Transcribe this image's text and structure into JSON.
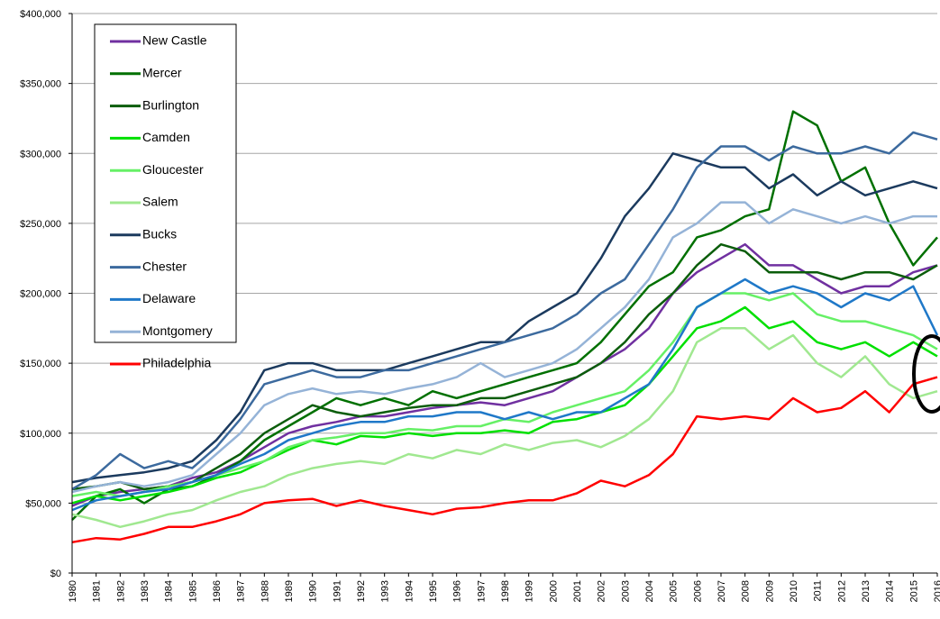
{
  "chart_data": {
    "type": "line",
    "x": [
      1980,
      1981,
      1982,
      1983,
      1984,
      1985,
      1986,
      1987,
      1988,
      1989,
      1990,
      1991,
      1992,
      1993,
      1994,
      1995,
      1996,
      1997,
      1998,
      1999,
      2000,
      2001,
      2002,
      2003,
      2004,
      2005,
      2006,
      2007,
      2008,
      2009,
      2010,
      2011,
      2012,
      2013,
      2014,
      2015,
      2016
    ],
    "xlim": [
      1980,
      2016
    ],
    "xticks": [
      1980,
      1981,
      1982,
      1983,
      1984,
      1985,
      1986,
      1987,
      1988,
      1989,
      1990,
      1991,
      1992,
      1993,
      1994,
      1995,
      1996,
      1997,
      1998,
      1999,
      2000,
      2001,
      2002,
      2003,
      2004,
      2005,
      2006,
      2007,
      2008,
      2009,
      2010,
      2011,
      2012,
      2013,
      2014,
      2015,
      2016
    ],
    "ylim": [
      0,
      400000
    ],
    "yticks": [
      {
        "value": 0,
        "label": "$0"
      },
      {
        "value": 50000,
        "label": "$50,000"
      },
      {
        "value": 100000,
        "label": "$100,000"
      },
      {
        "value": 150000,
        "label": "$150,000"
      },
      {
        "value": 200000,
        "label": "$200,000"
      },
      {
        "value": 250000,
        "label": "$250,000"
      },
      {
        "value": 300000,
        "label": "$300,000"
      },
      {
        "value": 350000,
        "label": "$350,000"
      },
      {
        "value": 400000,
        "label": "$400,000"
      }
    ],
    "grid": true,
    "legend": "top-left",
    "series": [
      {
        "name": "New Castle",
        "color": "#7030a0",
        "values": [
          48000,
          55000,
          58000,
          60000,
          62000,
          68000,
          72000,
          80000,
          90000,
          100000,
          105000,
          108000,
          112000,
          112000,
          115000,
          118000,
          120000,
          122000,
          120000,
          125000,
          130000,
          140000,
          150000,
          160000,
          175000,
          200000,
          215000,
          225000,
          235000,
          220000,
          220000,
          210000,
          200000,
          205000,
          205000,
          215000,
          220000
        ]
      },
      {
        "name": "Mercer",
        "color": "#007000",
        "values": [
          38000,
          55000,
          60000,
          50000,
          60000,
          62000,
          70000,
          80000,
          95000,
          105000,
          115000,
          125000,
          120000,
          125000,
          120000,
          130000,
          125000,
          130000,
          135000,
          140000,
          145000,
          150000,
          165000,
          185000,
          205000,
          215000,
          240000,
          245000,
          255000,
          260000,
          330000,
          320000,
          280000,
          290000,
          250000,
          220000,
          240000
        ]
      },
      {
        "name": "Burlington",
        "color": "#0b5d0b",
        "values": [
          60000,
          62000,
          65000,
          60000,
          62000,
          65000,
          75000,
          85000,
          100000,
          110000,
          120000,
          115000,
          112000,
          115000,
          118000,
          120000,
          120000,
          125000,
          125000,
          130000,
          135000,
          140000,
          150000,
          165000,
          185000,
          200000,
          220000,
          235000,
          230000,
          215000,
          215000,
          215000,
          210000,
          215000,
          215000,
          210000,
          220000
        ]
      },
      {
        "name": "Camden",
        "color": "#00e000",
        "values": [
          50000,
          55000,
          52000,
          55000,
          58000,
          62000,
          68000,
          72000,
          80000,
          88000,
          95000,
          92000,
          98000,
          97000,
          100000,
          98000,
          100000,
          100000,
          102000,
          100000,
          108000,
          110000,
          115000,
          120000,
          135000,
          155000,
          175000,
          180000,
          190000,
          175000,
          180000,
          165000,
          160000,
          165000,
          155000,
          165000,
          155000
        ]
      },
      {
        "name": "Gloucester",
        "color": "#66f066",
        "values": [
          55000,
          58000,
          55000,
          58000,
          62000,
          65000,
          70000,
          75000,
          80000,
          90000,
          95000,
          97000,
          100000,
          100000,
          103000,
          102000,
          105000,
          105000,
          110000,
          108000,
          115000,
          120000,
          125000,
          130000,
          145000,
          165000,
          190000,
          200000,
          200000,
          195000,
          200000,
          185000,
          180000,
          180000,
          175000,
          170000,
          160000
        ]
      },
      {
        "name": "Salem",
        "color": "#a0e890",
        "values": [
          42000,
          38000,
          33000,
          37000,
          42000,
          45000,
          52000,
          58000,
          62000,
          70000,
          75000,
          78000,
          80000,
          78000,
          85000,
          82000,
          88000,
          85000,
          92000,
          88000,
          93000,
          95000,
          90000,
          98000,
          110000,
          130000,
          165000,
          175000,
          175000,
          160000,
          170000,
          150000,
          140000,
          155000,
          135000,
          125000,
          130000
        ]
      },
      {
        "name": "Bucks",
        "color": "#1b3a5e",
        "values": [
          65000,
          68000,
          70000,
          72000,
          75000,
          80000,
          95000,
          115000,
          145000,
          150000,
          150000,
          145000,
          145000,
          145000,
          150000,
          155000,
          160000,
          165000,
          165000,
          180000,
          190000,
          200000,
          225000,
          255000,
          275000,
          300000,
          295000,
          290000,
          290000,
          275000,
          285000,
          270000,
          280000,
          270000,
          275000,
          280000,
          275000
        ]
      },
      {
        "name": "Chester",
        "color": "#3c6a9e",
        "values": [
          60000,
          70000,
          85000,
          75000,
          80000,
          75000,
          90000,
          110000,
          135000,
          140000,
          145000,
          140000,
          140000,
          145000,
          145000,
          150000,
          155000,
          160000,
          165000,
          170000,
          175000,
          185000,
          200000,
          210000,
          235000,
          260000,
          290000,
          305000,
          305000,
          295000,
          305000,
          300000,
          300000,
          305000,
          300000,
          315000,
          310000
        ]
      },
      {
        "name": "Delaware",
        "color": "#1f78c8",
        "values": [
          45000,
          52000,
          55000,
          58000,
          60000,
          65000,
          70000,
          78000,
          85000,
          95000,
          100000,
          105000,
          108000,
          108000,
          112000,
          112000,
          115000,
          115000,
          110000,
          115000,
          110000,
          115000,
          115000,
          125000,
          135000,
          160000,
          190000,
          200000,
          210000,
          200000,
          205000,
          200000,
          190000,
          200000,
          195000,
          205000,
          170000
        ]
      },
      {
        "name": "Montgomery",
        "color": "#95b3d7",
        "values": [
          58000,
          62000,
          65000,
          62000,
          65000,
          70000,
          85000,
          100000,
          120000,
          128000,
          132000,
          128000,
          130000,
          128000,
          132000,
          135000,
          140000,
          150000,
          140000,
          145000,
          150000,
          160000,
          175000,
          190000,
          210000,
          240000,
          250000,
          265000,
          265000,
          250000,
          260000,
          255000,
          250000,
          255000,
          250000,
          255000,
          255000
        ]
      },
      {
        "name": "Philadelphia",
        "color": "#ff0000",
        "values": [
          22000,
          25000,
          24000,
          28000,
          33000,
          33000,
          37000,
          42000,
          50000,
          52000,
          53000,
          48000,
          52000,
          48000,
          45000,
          42000,
          46000,
          47000,
          50000,
          52000,
          52000,
          57000,
          66000,
          62000,
          70000,
          85000,
          112000,
          110000,
          112000,
          110000,
          125000,
          115000,
          118000,
          130000,
          115000,
          135000,
          140000
        ]
      }
    ]
  }
}
